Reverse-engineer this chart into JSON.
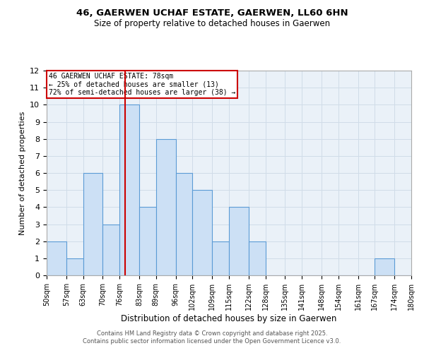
{
  "title_line1": "46, GAERWEN UCHAF ESTATE, GAERWEN, LL60 6HN",
  "title_line2": "Size of property relative to detached houses in Gaerwen",
  "xlabel": "Distribution of detached houses by size in Gaerwen",
  "ylabel": "Number of detached properties",
  "bins": [
    50,
    57,
    63,
    70,
    76,
    83,
    89,
    96,
    102,
    109,
    115,
    122,
    128,
    135,
    141,
    148,
    154,
    161,
    167,
    174,
    180
  ],
  "counts": [
    2,
    1,
    6,
    3,
    10,
    4,
    8,
    6,
    5,
    2,
    4,
    2,
    0,
    0,
    0,
    0,
    0,
    0,
    1,
    0
  ],
  "bar_color": "#cce0f5",
  "bar_edgecolor": "#5b9bd5",
  "vline_x": 78,
  "vline_color": "#cc0000",
  "ylim": [
    0,
    12
  ],
  "yticks": [
    0,
    1,
    2,
    3,
    4,
    5,
    6,
    7,
    8,
    9,
    10,
    11,
    12
  ],
  "tick_labels": [
    "50sqm",
    "57sqm",
    "63sqm",
    "70sqm",
    "76sqm",
    "83sqm",
    "89sqm",
    "96sqm",
    "102sqm",
    "109sqm",
    "115sqm",
    "122sqm",
    "128sqm",
    "135sqm",
    "141sqm",
    "148sqm",
    "154sqm",
    "161sqm",
    "167sqm",
    "174sqm",
    "180sqm"
  ],
  "annotation_title": "46 GAERWEN UCHAF ESTATE: 78sqm",
  "annotation_line2": "← 25% of detached houses are smaller (13)",
  "annotation_line3": "72% of semi-detached houses are larger (38) →",
  "annotation_box_color": "#ffffff",
  "annotation_box_edgecolor": "#cc0000",
  "grid_color": "#d0dce8",
  "bg_color": "#eaf1f8",
  "footer_line1": "Contains HM Land Registry data © Crown copyright and database right 2025.",
  "footer_line2": "Contains public sector information licensed under the Open Government Licence v3.0."
}
